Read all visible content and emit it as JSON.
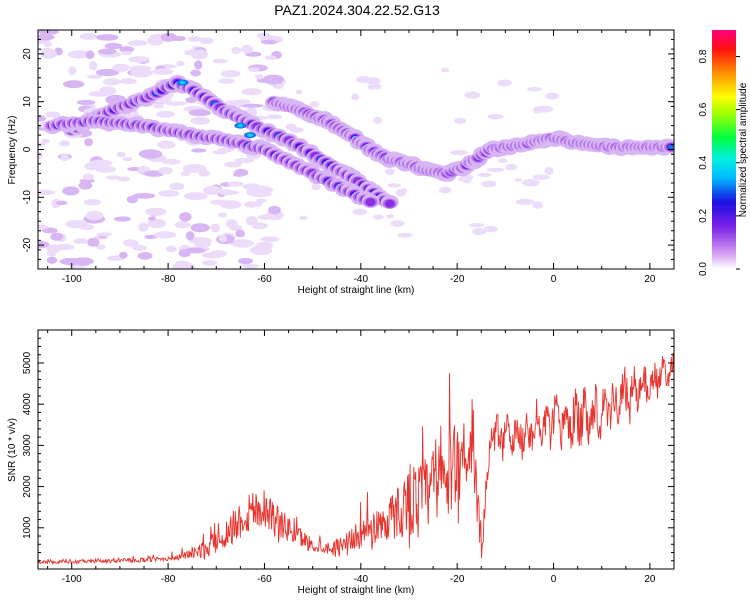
{
  "title": "PAZ1.2024.304.22.52.G13",
  "chart_data": [
    {
      "type": "heatmap",
      "xlabel": "Height of straight line (km)",
      "ylabel": "Frequency (Hz)",
      "xlim": [
        -107,
        25
      ],
      "ylim": [
        -25,
        25
      ],
      "xticks": [
        -100,
        -80,
        -60,
        -40,
        -20,
        0,
        20
      ],
      "yticks": [
        -20,
        -10,
        0,
        10,
        20
      ],
      "colorbar": {
        "label": "Normalized spectral amplitude",
        "range": [
          0,
          0.9
        ],
        "ticks": [
          "0.0",
          "0.2",
          "0.4",
          "0.6",
          "0.8"
        ]
      },
      "ridges": [
        {
          "name": "upper",
          "points": [
            [
              -100,
              4
            ],
            [
              -92,
              8
            ],
            [
              -84,
              11
            ],
            [
              -78,
              14
            ],
            [
              -74,
              12
            ],
            [
              -68,
              8
            ],
            [
              -62,
              5
            ],
            [
              -55,
              2
            ],
            [
              -50,
              -1
            ],
            [
              -45,
              -4
            ],
            [
              -40,
              -7
            ],
            [
              -36,
              -10
            ],
            [
              -33,
              -12
            ]
          ]
        },
        {
          "name": "lower",
          "points": [
            [
              -104,
              5
            ],
            [
              -95,
              6
            ],
            [
              -85,
              5
            ],
            [
              -75,
              3
            ],
            [
              -68,
              2
            ],
            [
              -60,
              0
            ],
            [
              -54,
              -3
            ],
            [
              -48,
              -6
            ],
            [
              -42,
              -9
            ],
            [
              -38,
              -11
            ]
          ]
        },
        {
          "name": "main",
          "points": [
            [
              -58,
              10
            ],
            [
              -52,
              8
            ],
            [
              -47,
              6
            ],
            [
              -42,
              3
            ],
            [
              -38,
              0
            ],
            [
              -34,
              -2
            ],
            [
              -30,
              -3
            ],
            [
              -26,
              -4.5
            ],
            [
              -22,
              -5
            ],
            [
              -19,
              -4
            ],
            [
              -16,
              -2
            ],
            [
              -13,
              0
            ],
            [
              -10,
              0.5
            ],
            [
              -6,
              1
            ],
            [
              -2,
              2
            ],
            [
              0,
              2.5
            ],
            [
              4,
              1.5
            ],
            [
              8,
              1
            ],
            [
              12,
              0.5
            ],
            [
              16,
              0.5
            ],
            [
              20,
              0.5
            ],
            [
              25,
              0.5
            ]
          ]
        }
      ]
    },
    {
      "type": "line",
      "xlabel": "Height of straight line (km)",
      "ylabel": "SNR (10 * v/v)",
      "xlim": [
        -107,
        25
      ],
      "ylim": [
        0,
        5800
      ],
      "xticks": [
        -100,
        -80,
        -60,
        -40,
        -20,
        0,
        20
      ],
      "yticks": [
        1000,
        2000,
        3000,
        4000,
        5000
      ],
      "series_color": "#e8332d",
      "envelope": [
        {
          "x": -107,
          "base": 150,
          "amp": 100
        },
        {
          "x": -95,
          "base": 170,
          "amp": 120
        },
        {
          "x": -84,
          "base": 200,
          "amp": 150
        },
        {
          "x": -78,
          "base": 250,
          "amp": 200
        },
        {
          "x": -72,
          "base": 400,
          "amp": 600
        },
        {
          "x": -68,
          "base": 700,
          "amp": 1000
        },
        {
          "x": -63,
          "base": 1200,
          "amp": 1600
        },
        {
          "x": -60,
          "base": 1300,
          "amp": 1400
        },
        {
          "x": -56,
          "base": 900,
          "amp": 1000
        },
        {
          "x": -50,
          "base": 500,
          "amp": 500
        },
        {
          "x": -46,
          "base": 450,
          "amp": 400
        },
        {
          "x": -40,
          "base": 700,
          "amp": 1000
        },
        {
          "x": -34,
          "base": 1000,
          "amp": 1600
        },
        {
          "x": -30,
          "base": 1300,
          "amp": 2400
        },
        {
          "x": -26,
          "base": 1500,
          "amp": 2600
        },
        {
          "x": -22,
          "base": 1800,
          "amp": 3000
        },
        {
          "x": -18,
          "base": 2600,
          "amp": 3000
        },
        {
          "x": -16,
          "base": 1500,
          "amp": 2000
        },
        {
          "x": -15,
          "base": 500,
          "amp": 500
        },
        {
          "x": -13,
          "base": 3200,
          "amp": 700
        },
        {
          "x": -8,
          "base": 3200,
          "amp": 700
        },
        {
          "x": -4,
          "base": 3400,
          "amp": 800
        },
        {
          "x": 0,
          "base": 3500,
          "amp": 900
        },
        {
          "x": 5,
          "base": 3600,
          "amp": 1000
        },
        {
          "x": 10,
          "base": 3900,
          "amp": 900
        },
        {
          "x": 15,
          "base": 4200,
          "amp": 900
        },
        {
          "x": 20,
          "base": 4500,
          "amp": 700
        },
        {
          "x": 25,
          "base": 4900,
          "amp": 400
        }
      ]
    }
  ]
}
